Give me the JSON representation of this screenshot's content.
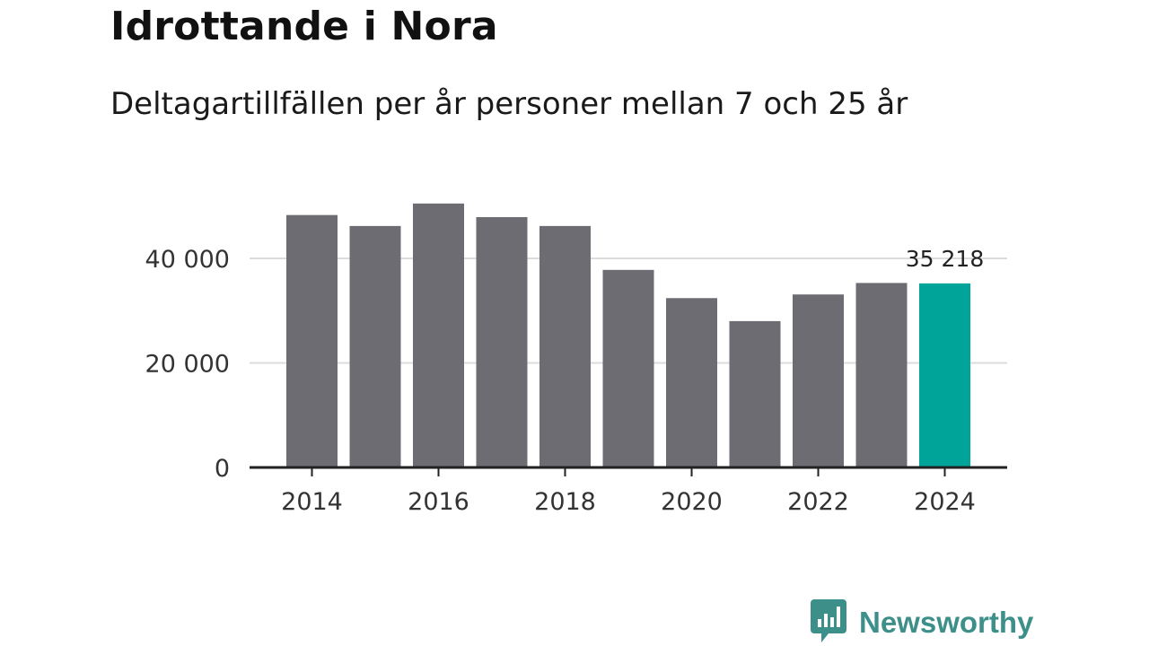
{
  "header": {
    "title": "Idrottande i Nora",
    "subtitle": "Deltagartillfällen per år personer mellan 7 och 25 år"
  },
  "brand": {
    "name": "Newsworthy",
    "icon": "newsworthy-logo-icon",
    "color": "#3d8f8a"
  },
  "colors": {
    "bar": "#6d6c72",
    "highlight": "#00a499",
    "grid": "#dcdcdc",
    "axis": "#222222"
  },
  "chart_data": {
    "type": "bar",
    "title": "Idrottande i Nora",
    "subtitle": "Deltagartillfällen per år personer mellan 7 och 25 år",
    "xlabel": "",
    "ylabel": "",
    "categories": [
      "2014",
      "2015",
      "2016",
      "2017",
      "2018",
      "2019",
      "2020",
      "2021",
      "2022",
      "2023",
      "2024"
    ],
    "values": [
      48300,
      46200,
      50500,
      47900,
      46200,
      37800,
      32400,
      28000,
      33100,
      35300,
      35218
    ],
    "highlight_index": 10,
    "highlight_label": "35 218",
    "ylim": [
      0,
      54000
    ],
    "y_ticks": [
      0,
      20000,
      40000
    ],
    "y_tick_labels": [
      "0",
      "20 000",
      "40 000"
    ],
    "x_tick_labels": [
      "2014",
      "2016",
      "2018",
      "2020",
      "2022",
      "2024"
    ],
    "grid": true,
    "legend": "none"
  }
}
